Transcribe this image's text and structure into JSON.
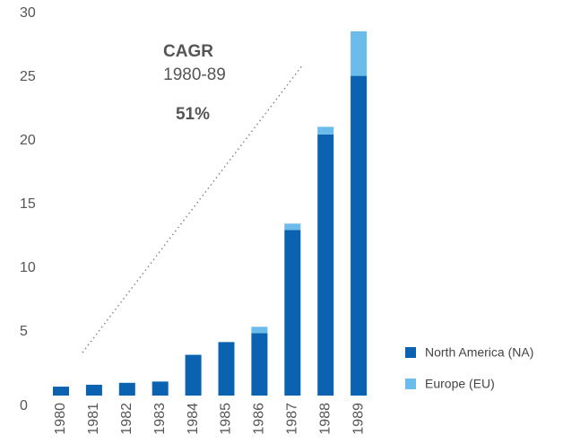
{
  "chart_data": {
    "type": "stacked-bar",
    "categories": [
      "1980",
      "1981",
      "1982",
      "1983",
      "1984",
      "1985",
      "1986",
      "1987",
      "1988",
      "1989"
    ],
    "series": [
      {
        "name": "North America (NA)",
        "color": "#0b62b0",
        "values": [
          0.7,
          0.85,
          1.0,
          1.1,
          3.2,
          4.2,
          4.9,
          13.0,
          20.5,
          25.1
        ]
      },
      {
        "name": "Europe (EU)",
        "color": "#6bbcea",
        "values": [
          0,
          0,
          0,
          0,
          0,
          0,
          0.5,
          0.5,
          0.6,
          3.5
        ]
      }
    ],
    "ylim": [
      0,
      30
    ],
    "yticks": [
      0,
      5,
      10,
      15,
      20,
      25,
      30
    ],
    "grid": false,
    "legend": "bottom-right",
    "annotations": [
      "CAGR",
      "1980-89",
      "51%"
    ]
  }
}
